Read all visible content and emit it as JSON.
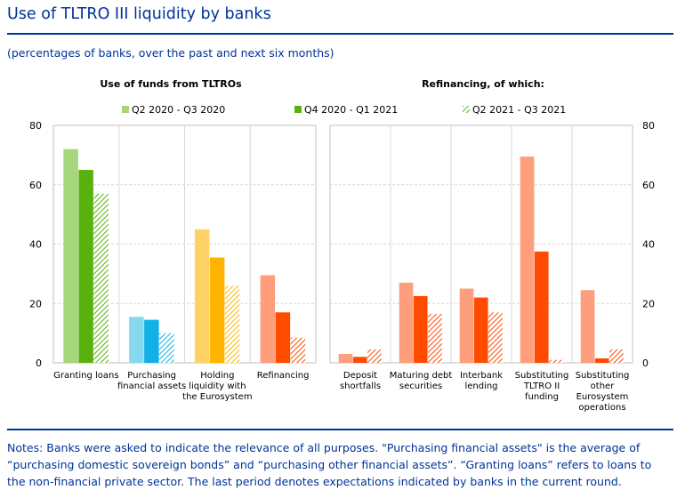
{
  "header": {
    "title": "Use of TLTRO III liquidity by banks",
    "subtitle": "(percentages of banks, over the past and next six months)"
  },
  "notes": "Notes: Banks were asked to indicate the relevance of all purposes. \"Purchasing financial assets\" is the average of “purchasing domestic sovereign bonds” and “purchasing other financial assets”. “Granting loans” refers to loans to the non-financial private sector. The last period denotes expectations indicated by banks in the current round.",
  "chart_data": {
    "type": "bar",
    "ylim": [
      0,
      80
    ],
    "yticks": [
      0,
      20,
      40,
      60,
      80
    ],
    "gridlines": true,
    "legend_position": "top",
    "series": [
      {
        "name": "Q2 2020 - Q3 2020",
        "style": "light"
      },
      {
        "name": "Q4 2020 - Q1 2021",
        "style": "solid"
      },
      {
        "name": "Q2 2021 - Q3 2021",
        "style": "hatched"
      }
    ],
    "panels": [
      {
        "title": "Use of funds from TLTROs",
        "groups": [
          {
            "label": [
              "Granting loans"
            ],
            "values": [
              72,
              65,
              57
            ],
            "colors": {
              "light": "#a5d67b",
              "solid": "#59b10e",
              "hatch": "#59b10e"
            }
          },
          {
            "label": [
              "Purchasing",
              "financial assets"
            ],
            "values": [
              15.5,
              14.5,
              10
            ],
            "colors": {
              "light": "#86d8f0",
              "solid": "#11b1e8",
              "hatch": "#11b1e8"
            }
          },
          {
            "label": [
              "Holding",
              "liquidity with",
              "the Eurosystem"
            ],
            "values": [
              45,
              35.5,
              26
            ],
            "colors": {
              "light": "#ffd266",
              "solid": "#ffb400",
              "hatch": "#ffb400"
            }
          },
          {
            "label": [
              "Refinancing"
            ],
            "values": [
              29.5,
              17,
              8.5
            ],
            "colors": {
              "light": "#ff9e7c",
              "solid": "#ff4b00",
              "hatch": "#ff4b00"
            }
          }
        ]
      },
      {
        "title": "Refinancing, of which:",
        "groups": [
          {
            "label": [
              "Deposit",
              "shortfalls"
            ],
            "values": [
              3,
              2,
              4.5
            ],
            "colors": {
              "light": "#ff9e7c",
              "solid": "#ff4b00",
              "hatch": "#ff4b00"
            }
          },
          {
            "label": [
              "Maturing debt",
              "securities"
            ],
            "values": [
              27,
              22.5,
              16.5
            ],
            "colors": {
              "light": "#ff9e7c",
              "solid": "#ff4b00",
              "hatch": "#ff4b00"
            }
          },
          {
            "label": [
              "Interbank",
              "lending"
            ],
            "values": [
              25,
              22,
              17
            ],
            "colors": {
              "light": "#ff9e7c",
              "solid": "#ff4b00",
              "hatch": "#ff4b00"
            }
          },
          {
            "label": [
              "Substituting",
              "TLTRO II",
              "funding"
            ],
            "values": [
              69.5,
              37.5,
              1
            ],
            "colors": {
              "light": "#ff9e7c",
              "solid": "#ff4b00",
              "hatch": "#ff4b00"
            }
          },
          {
            "label": [
              "Substituting",
              "other",
              "Eurosystem",
              "operations"
            ],
            "values": [
              24.5,
              1.5,
              4.5
            ],
            "colors": {
              "light": "#ff9e7c",
              "solid": "#ff4b00",
              "hatch": "#ff4b00"
            }
          }
        ]
      }
    ]
  }
}
